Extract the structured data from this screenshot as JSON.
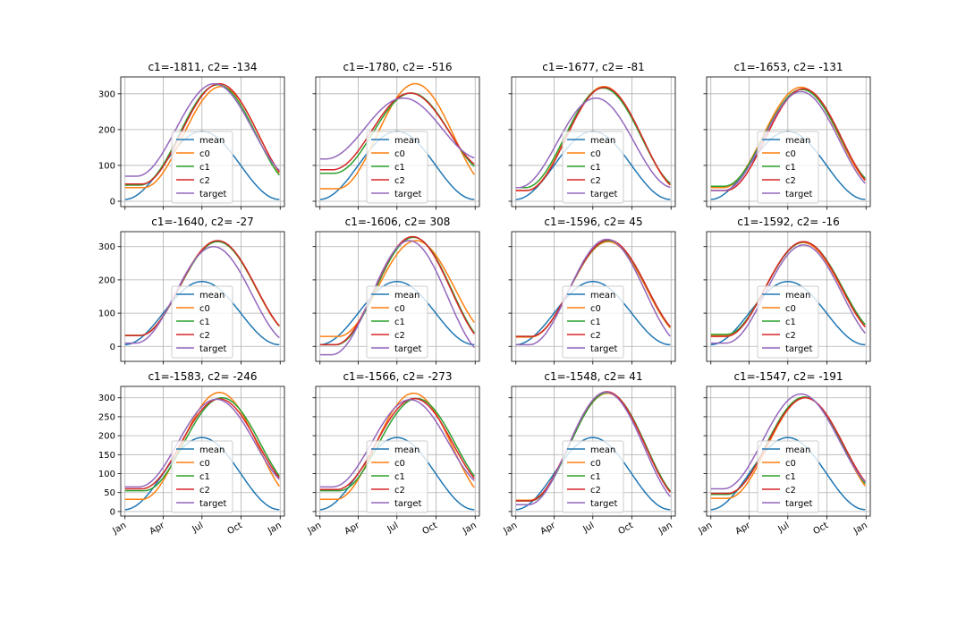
{
  "figure": {
    "series_styles": [
      {
        "name": "mean",
        "color": "#1f77b4"
      },
      {
        "name": "c0",
        "color": "#ff7f0e"
      },
      {
        "name": "c1",
        "color": "#2ca02c"
      },
      {
        "name": "c2",
        "color": "#d62728"
      },
      {
        "name": "target",
        "color": "#9467bd"
      }
    ],
    "x_tick_labels": [
      "Jan",
      "Apr",
      "Jul",
      "Oct",
      "Jan"
    ],
    "x_tick_values": [
      0,
      90,
      181,
      273,
      365
    ],
    "xlim": [
      -10,
      375
    ],
    "row_yticks": [
      [
        0,
        100,
        200,
        300
      ],
      [
        0,
        100,
        200,
        300
      ],
      [
        0,
        50,
        100,
        150,
        200,
        250,
        300
      ]
    ],
    "row_ylim": [
      [
        -15,
        347
      ],
      [
        -45,
        345
      ],
      [
        -12,
        330
      ]
    ]
  },
  "chart_data": [
    {
      "type": "line",
      "title": "c1=-1811, c2= -134",
      "params": {
        "c0": [
          38,
          320,
          226
        ],
        "c1": [
          45,
          325,
          218
        ],
        "c2": [
          48,
          328,
          222
        ],
        "target": [
          70,
          328,
          210
        ]
      }
    },
    {
      "type": "line",
      "title": "c1=-1780, c2= -516",
      "params": {
        "c0": [
          35,
          328,
          224
        ],
        "c1": [
          78,
          302,
          215
        ],
        "c2": [
          88,
          302,
          212
        ],
        "target": [
          118,
          288,
          196
        ]
      }
    },
    {
      "type": "line",
      "title": "c1=-1677, c2=  -81",
      "params": {
        "c0": [
          30,
          320,
          207
        ],
        "c1": [
          38,
          316,
          205
        ],
        "c2": [
          30,
          318,
          208
        ],
        "target": [
          38,
          288,
          188
        ]
      }
    },
    {
      "type": "line",
      "title": "c1=-1653, c2= -131",
      "params": {
        "c0": [
          38,
          318,
          212
        ],
        "c1": [
          42,
          312,
          214
        ],
        "c2": [
          30,
          314,
          218
        ],
        "target": [
          30,
          306,
          212
        ]
      }
    },
    {
      "type": "line",
      "title": "c1=-1640, c2=  -27",
      "params": {
        "c0": [
          33,
          317,
          217
        ],
        "c1": [
          33,
          315,
          218
        ],
        "c2": [
          33,
          318,
          218
        ],
        "target": [
          10,
          300,
          208
        ]
      }
    },
    {
      "type": "line",
      "title": "c1=-1606, c2=  308",
      "params": {
        "c0": [
          30,
          318,
          226
        ],
        "c1": [
          5,
          328,
          220
        ],
        "c2": [
          5,
          330,
          218
        ],
        "target": [
          -25,
          318,
          210
        ]
      }
    },
    {
      "type": "line",
      "title": "c1=-1596, c2=   45",
      "params": {
        "c0": [
          28,
          315,
          217
        ],
        "c1": [
          30,
          318,
          218
        ],
        "c2": [
          30,
          320,
          218
        ],
        "target": [
          5,
          322,
          214
        ]
      }
    },
    {
      "type": "line",
      "title": "c1=-1592, c2=  -16",
      "params": {
        "c0": [
          32,
          312,
          217
        ],
        "c1": [
          36,
          314,
          219
        ],
        "c2": [
          30,
          315,
          218
        ],
        "target": [
          10,
          305,
          218
        ]
      }
    },
    {
      "type": "line",
      "title": "c1=-1583, c2= -246",
      "params": {
        "c0": [
          32,
          314,
          222
        ],
        "c1": [
          55,
          300,
          228
        ],
        "c2": [
          60,
          297,
          222
        ],
        "target": [
          65,
          296,
          215
        ]
      }
    },
    {
      "type": "line",
      "title": "c1=-1566, c2= -273",
      "params": {
        "c0": [
          32,
          312,
          220
        ],
        "c1": [
          55,
          298,
          228
        ],
        "c2": [
          58,
          298,
          222
        ],
        "target": [
          65,
          295,
          212
        ]
      }
    },
    {
      "type": "line",
      "title": "c1=-1548, c2=   41",
      "params": {
        "c0": [
          30,
          312,
          215
        ],
        "c1": [
          28,
          314,
          216
        ],
        "c2": [
          28,
          316,
          214
        ],
        "target": [
          18,
          315,
          212
        ]
      }
    },
    {
      "type": "line",
      "title": "c1=-1547, c2= -191",
      "params": {
        "c0": [
          35,
          300,
          222
        ],
        "c1": [
          45,
          302,
          220
        ],
        "c2": [
          48,
          300,
          222
        ],
        "target": [
          60,
          310,
          212
        ]
      }
    }
  ]
}
